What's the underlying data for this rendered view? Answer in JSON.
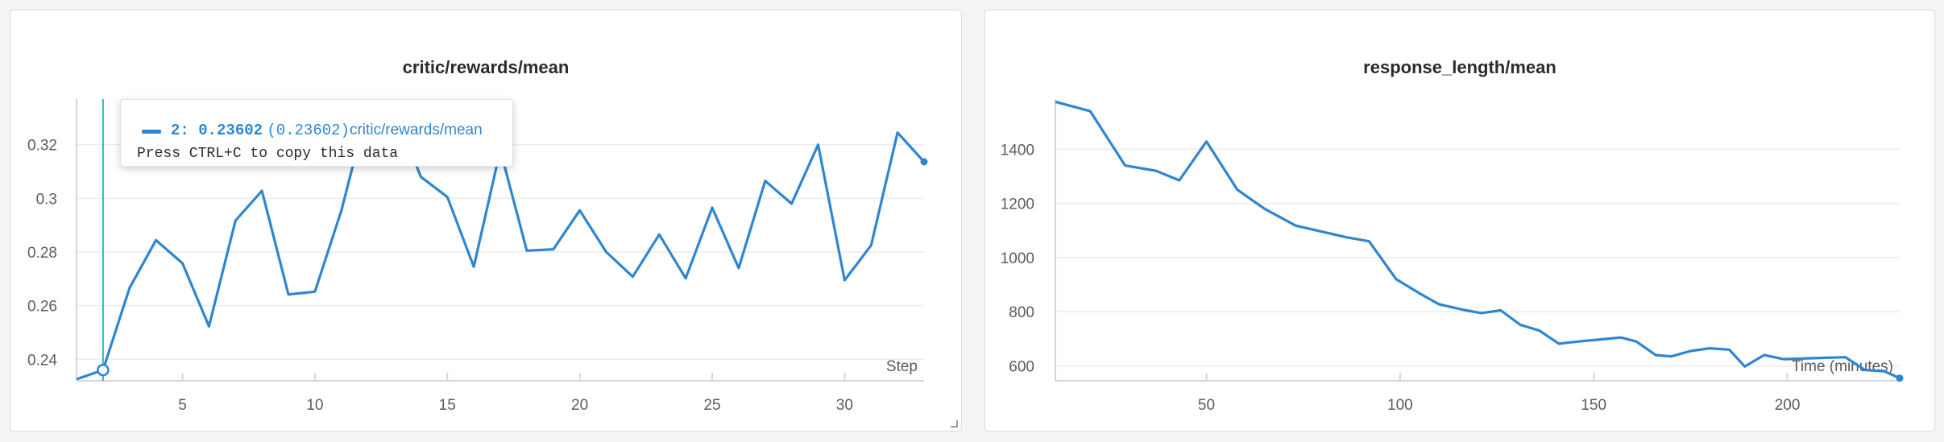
{
  "colors": {
    "series": "#2e86d1",
    "hover_line": "#27b3d6",
    "grid": "#ececef",
    "axis": "#d6d6da"
  },
  "tooltip": {
    "value_text": "2: 0.23602",
    "paren_text": "(0.23602)",
    "series_name": "critic/rewards/mean",
    "hint": "Press CTRL+C to copy this data"
  },
  "chart_data": [
    {
      "type": "line",
      "title": "critic/rewards/mean",
      "xlabel": "Step",
      "ylabel": "",
      "xlim": [
        1,
        33
      ],
      "ylim": [
        0.232,
        0.337
      ],
      "xticks": [
        5,
        10,
        15,
        20,
        25,
        30
      ],
      "yticks": [
        0.24,
        0.26,
        0.28,
        0.3,
        0.32
      ],
      "ytick_labels": [
        "0.24",
        "0.26",
        "0.28",
        "0.3",
        "0.32"
      ],
      "grid": true,
      "hover_x": 2,
      "series": [
        {
          "x": [
            1,
            2,
            3,
            4,
            5,
            6,
            7,
            8,
            9,
            10,
            11,
            12,
            13,
            14,
            15,
            16,
            17,
            18,
            19,
            20,
            21,
            22,
            23,
            24,
            25,
            26,
            27,
            28,
            29,
            30,
            31,
            32,
            33
          ],
          "y": [
            0.2326,
            0.23602,
            0.2666,
            0.2844,
            0.2758,
            0.2523,
            0.2917,
            0.3028,
            0.2642,
            0.2652,
            0.2955,
            0.334,
            0.333,
            0.308,
            0.3005,
            0.2745,
            0.318,
            0.2805,
            0.281,
            0.2955,
            0.28,
            0.2708,
            0.2865,
            0.2702,
            0.2965,
            0.274,
            0.3065,
            0.298,
            0.32,
            0.2695,
            0.2825,
            0.3245,
            0.3136
          ]
        }
      ]
    },
    {
      "type": "line",
      "title": "response_length/mean",
      "xlabel": "Time (minutes)",
      "ylabel": "",
      "xlim": [
        11,
        229
      ],
      "ylim": [
        545,
        1585
      ],
      "xticks": [
        50,
        100,
        150,
        200
      ],
      "yticks": [
        600,
        800,
        1000,
        1200,
        1400
      ],
      "ytick_labels": [
        "600",
        "800",
        "1000",
        "1200",
        "1400"
      ],
      "grid": true,
      "series": [
        {
          "x": [
            11,
            20,
            29,
            37,
            43,
            50,
            58,
            65,
            73,
            80,
            86,
            92,
            99,
            105,
            110,
            116,
            121,
            126,
            131,
            136,
            141,
            146,
            152,
            157,
            161,
            166,
            170,
            175,
            180,
            185,
            189,
            194,
            199,
            205,
            210,
            215,
            220,
            225,
            229
          ],
          "y": [
            1575,
            1540,
            1340,
            1320,
            1285,
            1428,
            1250,
            1180,
            1118,
            1095,
            1075,
            1060,
            920,
            868,
            828,
            808,
            795,
            805,
            752,
            730,
            682,
            690,
            698,
            705,
            690,
            640,
            635,
            655,
            665,
            660,
            598,
            640,
            625,
            628,
            630,
            632,
            585,
            580,
            555
          ]
        }
      ]
    }
  ]
}
